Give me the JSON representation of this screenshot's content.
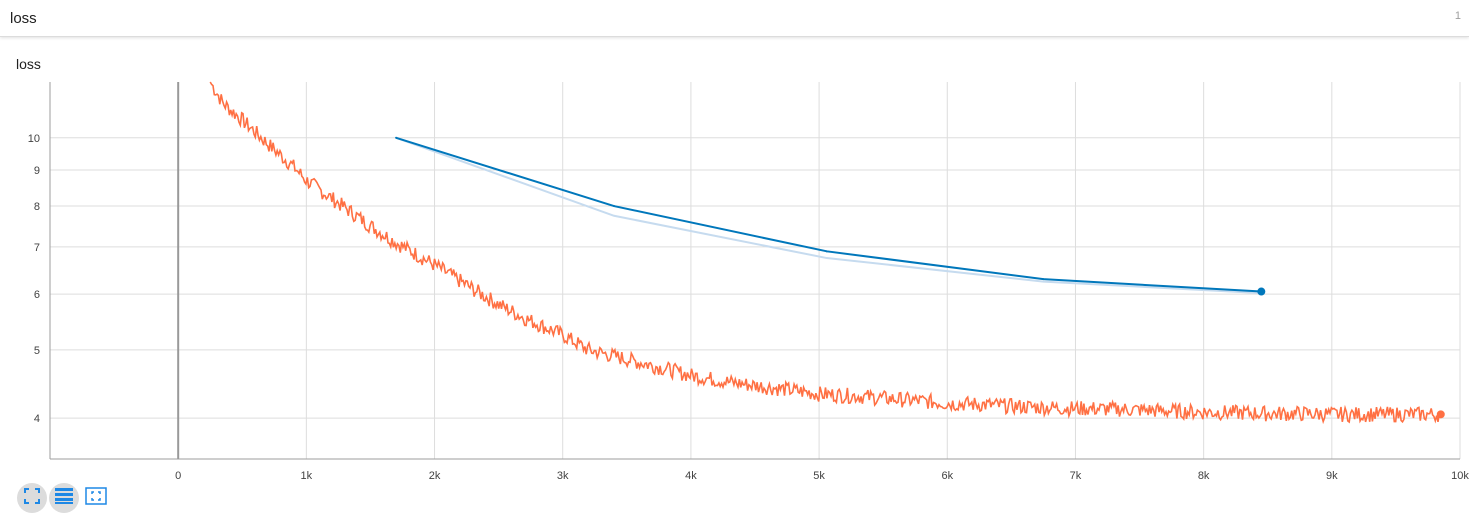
{
  "card": {
    "title": "loss",
    "count": "1"
  },
  "chart_title": "loss",
  "colors": {
    "train": "#ff7043",
    "eval": "#0077bb",
    "eval_raw": "#c6dbef",
    "grid": "#dddddd",
    "axis": "#9e9e9e",
    "zero_line": "#999999"
  },
  "toolbar": {
    "items": [
      {
        "name": "fit-to-data-icon",
        "active": true
      },
      {
        "name": "data-table-icon",
        "active": true
      },
      {
        "name": "select-zoom-icon",
        "active": false
      }
    ]
  },
  "chart_data": {
    "type": "line",
    "title": "loss",
    "xlabel": "",
    "ylabel": "",
    "yscale": "log",
    "xlim": [
      -1000,
      10000
    ],
    "ylim": [
      3.5,
      12.0
    ],
    "x_ticks": [
      0,
      1000,
      2000,
      3000,
      4000,
      5000,
      6000,
      7000,
      8000,
      9000,
      10000
    ],
    "x_tick_labels": [
      "0",
      "1k",
      "2k",
      "3k",
      "4k",
      "5k",
      "6k",
      "7k",
      "8k",
      "9k",
      "10k"
    ],
    "y_ticks": [
      4,
      5,
      6,
      7,
      8,
      9,
      10
    ],
    "y_tick_labels": [
      "4",
      "5",
      "6",
      "7",
      "8",
      "9",
      "10"
    ],
    "grid": true,
    "series": [
      {
        "key": "train",
        "color": "#ff7043",
        "end_marker": true,
        "x": [
          250,
          350,
          500,
          700,
          900,
          1000,
          1200,
          1500,
          1700,
          2000,
          2300,
          2500,
          2700,
          3000,
          3200,
          3500,
          3800,
          4000,
          4300,
          4500,
          4800,
          5000,
          5300,
          5500,
          5800,
          6000,
          6300,
          6500,
          6800,
          7000,
          7300,
          7500,
          7800,
          8000,
          8300,
          8500,
          8800,
          9000,
          9300,
          9500,
          9850
        ],
        "y": [
          12.0,
          11.2,
          10.6,
          9.8,
          9.1,
          8.7,
          8.2,
          7.5,
          7.1,
          6.6,
          6.1,
          5.8,
          5.55,
          5.25,
          5.0,
          4.85,
          4.7,
          4.6,
          4.5,
          4.45,
          4.38,
          4.33,
          4.3,
          4.27,
          4.23,
          4.2,
          4.18,
          4.16,
          4.14,
          4.13,
          4.12,
          4.11,
          4.09,
          4.08,
          4.07,
          4.06,
          4.06,
          4.05,
          4.05,
          4.05,
          4.05
        ]
      },
      {
        "key": "eval",
        "color": "#0077bb",
        "end_marker": true,
        "x": [
          1700,
          3400,
          5060,
          6750,
          8450
        ],
        "y": [
          10.0,
          8.0,
          6.9,
          6.3,
          6.05
        ],
        "raw_y": [
          10.0,
          7.75,
          6.75,
          6.25,
          6.02
        ]
      }
    ]
  }
}
